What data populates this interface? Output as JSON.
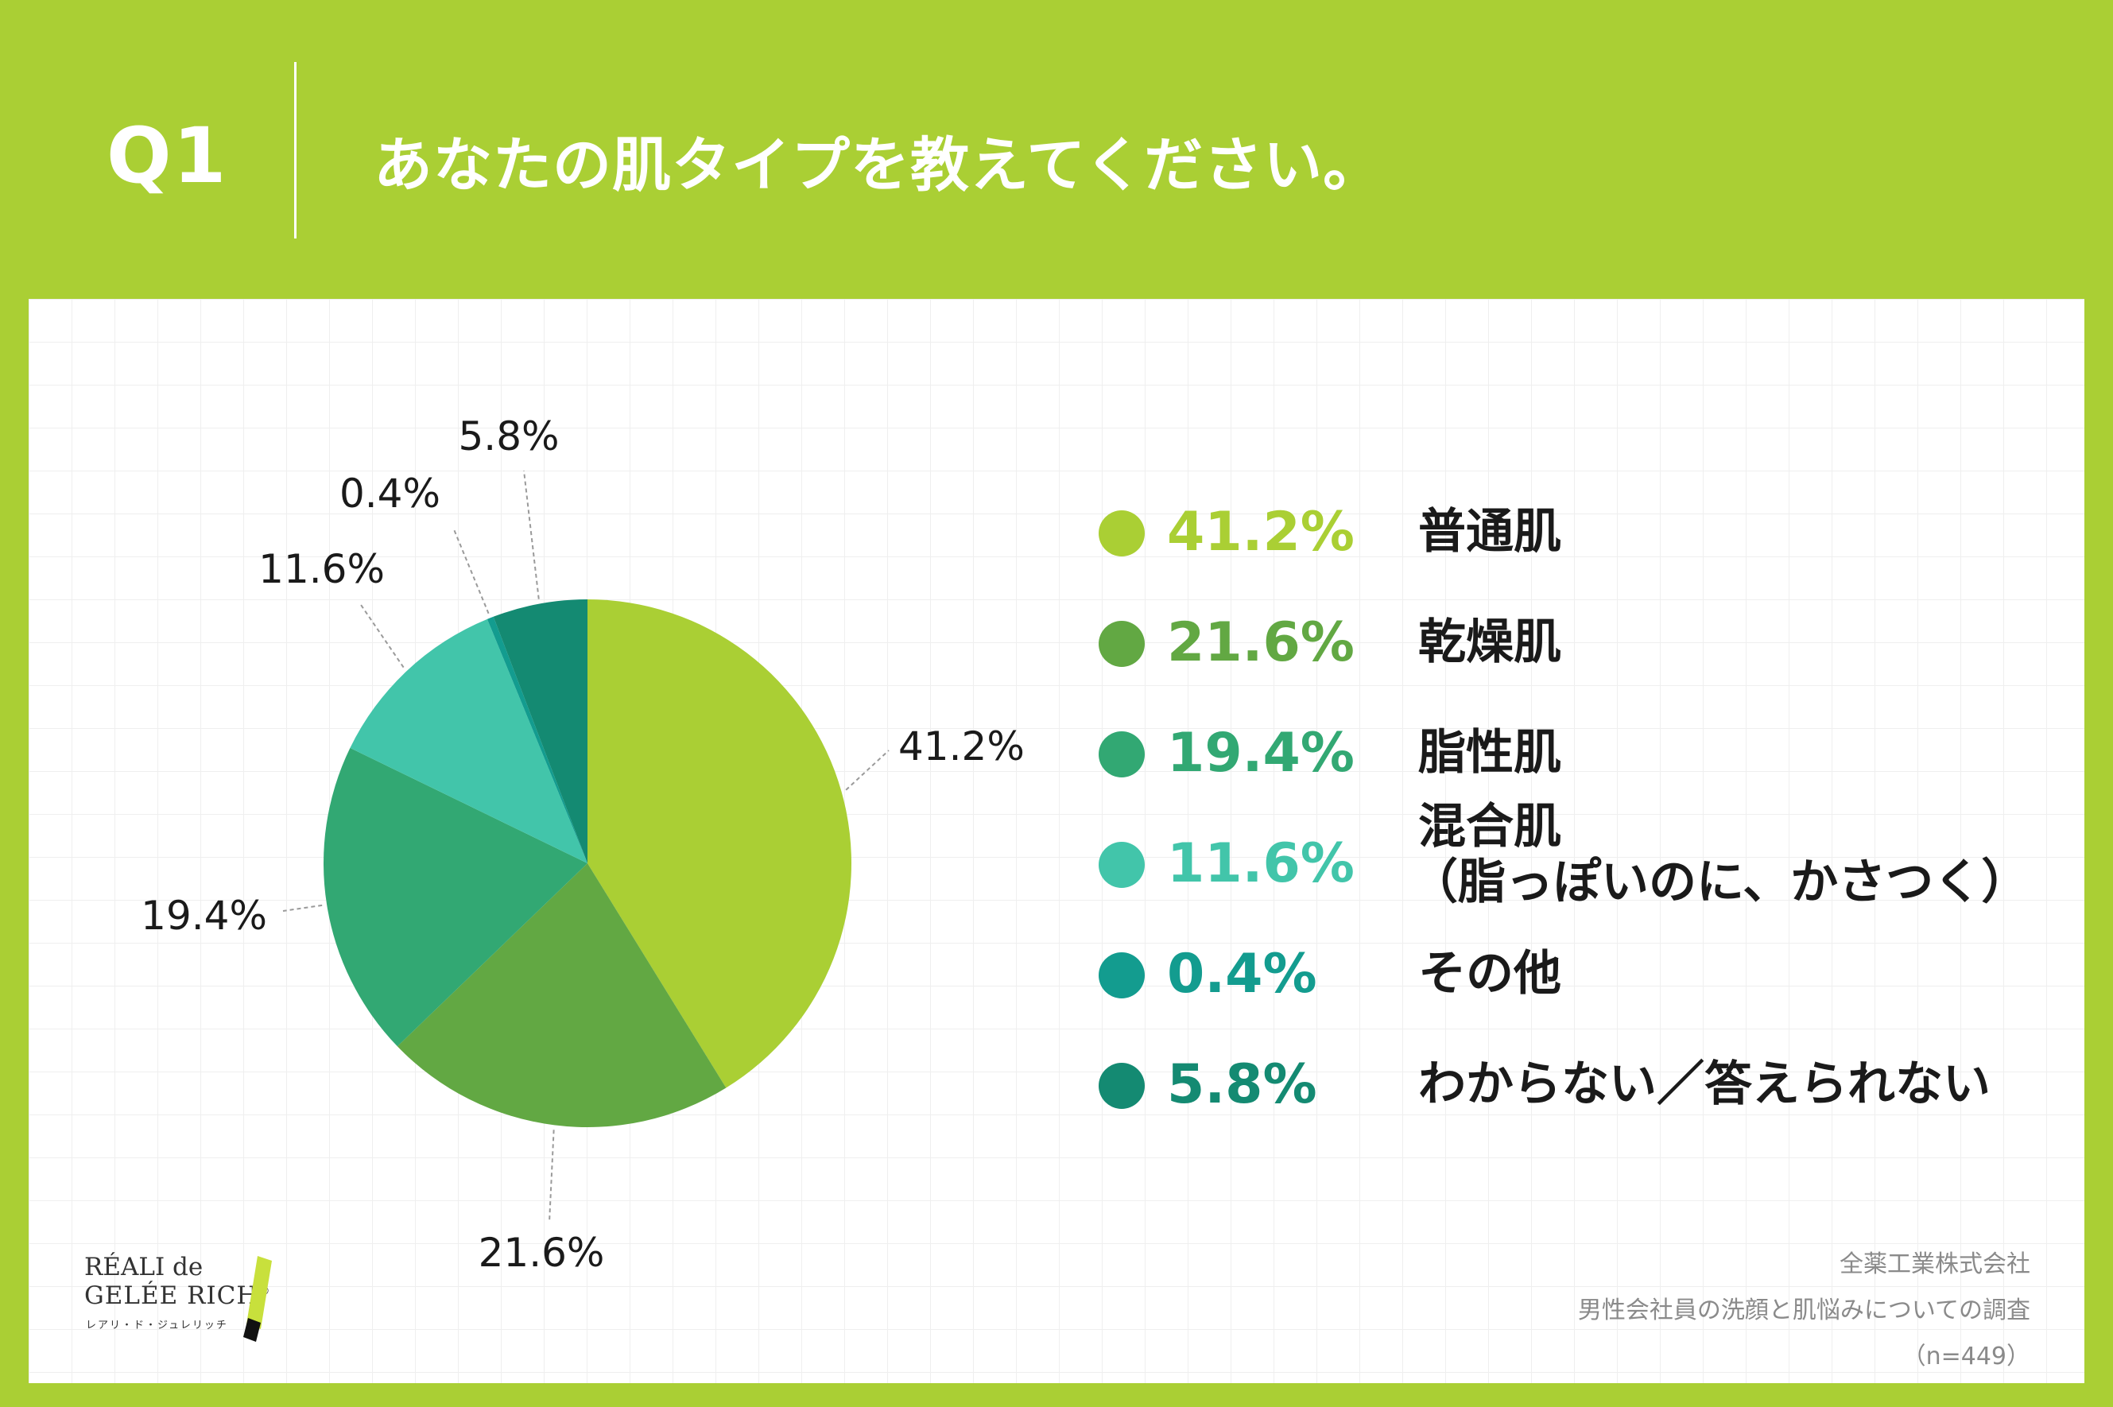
{
  "header": {
    "q_label": "Q1",
    "question": "あなたの肌タイプを教えてください。"
  },
  "chart_data": {
    "type": "pie",
    "title": "あなたの肌タイプを教えてください。",
    "categories": [
      "普通肌",
      "乾燥肌",
      "脂性肌",
      "混合肌（脂っぽいのに、かさつく）",
      "その他",
      "わからない／答えられない"
    ],
    "values": [
      41.2,
      21.6,
      19.4,
      11.6,
      0.4,
      5.8
    ],
    "value_labels": [
      "41.2%",
      "21.6%",
      "19.4%",
      "11.6%",
      "0.4%",
      "5.8%"
    ],
    "colors": [
      "#aacf34",
      "#62a843",
      "#32a873",
      "#42c5aa",
      "#139c8f",
      "#148a72"
    ],
    "start": "12 o'clock",
    "direction": "clockwise",
    "legend_position": "right"
  },
  "legend": {
    "items": [
      {
        "pct": "41.2%",
        "name": "普通肌",
        "sub": ""
      },
      {
        "pct": "21.6%",
        "name": "乾燥肌",
        "sub": ""
      },
      {
        "pct": "19.4%",
        "name": "脂性肌",
        "sub": ""
      },
      {
        "pct": "11.6%",
        "name": "混合肌",
        "sub": "（脂っぽいのに、かさつく）"
      },
      {
        "pct": "0.4%",
        "name": "その他",
        "sub": ""
      },
      {
        "pct": "5.8%",
        "name": "わからない／答えられない",
        "sub": ""
      }
    ]
  },
  "brand": {
    "line1": "RÉALI de",
    "line2": "GELÉE RICH",
    "reg": "®",
    "kana": "レアリ・ド・ジュレリッチ"
  },
  "source": {
    "company": "全薬工業株式会社",
    "survey": "男性会社員の洗顔と肌悩みについての調査",
    "sample": "（n=449）"
  }
}
